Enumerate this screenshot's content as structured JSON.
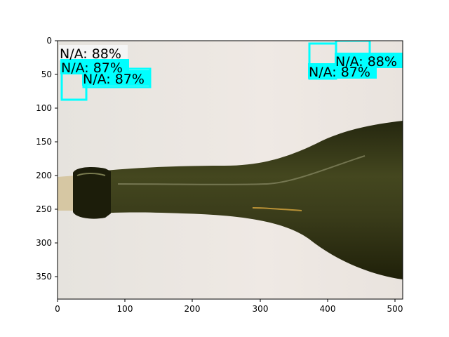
{
  "image": {
    "description_icon": "wine-bottle-photo",
    "colors": {
      "background": "#efe9e4",
      "bottle": "#3a3d1c",
      "box": "#00ffff"
    }
  },
  "axes": {
    "x_ticks": [
      "0",
      "100",
      "200",
      "300",
      "400",
      "500"
    ],
    "y_ticks": [
      "0",
      "50",
      "100",
      "150",
      "200",
      "250",
      "300",
      "350"
    ]
  },
  "detections": [
    {
      "label": "N/A: 88%"
    },
    {
      "label": "N/A: 87%"
    },
    {
      "label": "N/A: 87%"
    },
    {
      "label": "N/A: 88%"
    },
    {
      "label": "N/A: 87%"
    }
  ]
}
